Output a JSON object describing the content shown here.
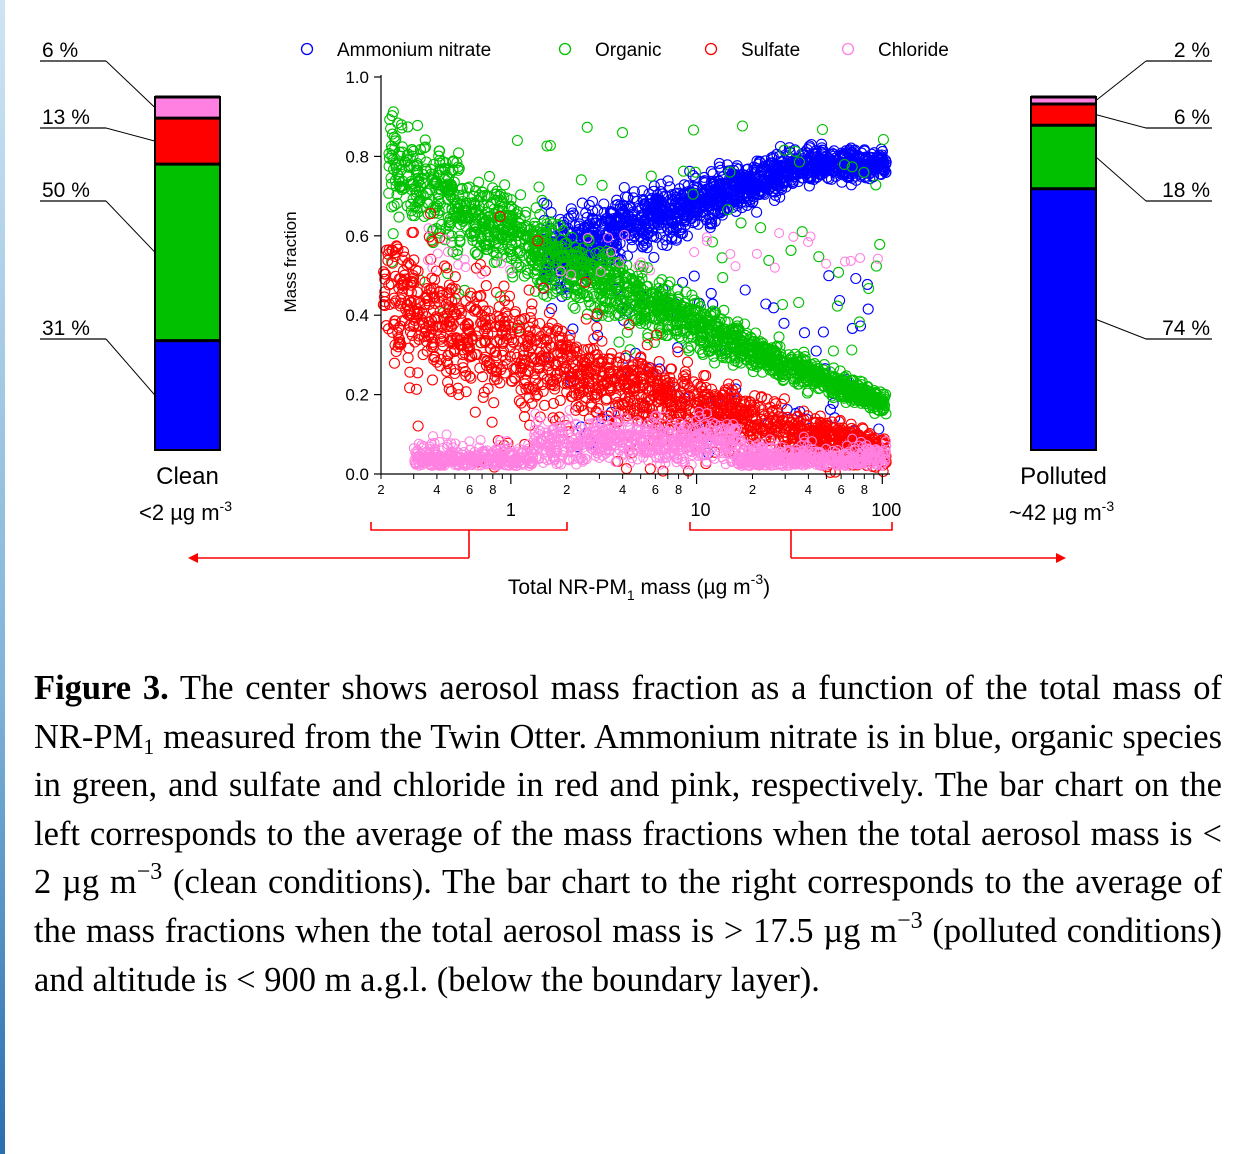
{
  "colors": {
    "ammonium_nitrate": "#0000ff",
    "organic": "#00c000",
    "sulfate": "#ff0000",
    "chloride": "#ff80e0",
    "arrow": "#ff0000"
  },
  "chart_data": [
    {
      "type": "scatter",
      "xlabel_main": "Total NR-PM",
      "xlabel_sub": "1",
      "xlabel_rest": " mass (µg m",
      "xlabel_sup": "-3",
      "xlabel_close": ")",
      "ylabel": "Mass fraction",
      "xscale": "log",
      "xlim": [
        0.2,
        110
      ],
      "ylim": [
        0,
        1
      ],
      "yticks": [
        "0.0",
        "0.2",
        "0.4",
        "0.6",
        "0.8",
        "1.0"
      ],
      "xtick_major": [
        "1",
        "10",
        "100"
      ],
      "xtick_minor": [
        "2",
        "4",
        "6",
        "8",
        "2",
        "4",
        "6",
        "8",
        "2",
        "4",
        "6",
        "8"
      ],
      "legend_position": "top",
      "series": [
        {
          "name": "Ammonium nitrate",
          "color_key": "ammonium_nitrate"
        },
        {
          "name": "Organic",
          "color_key": "organic"
        },
        {
          "name": "Sulfate",
          "color_key": "sulfate"
        },
        {
          "name": "Chloride",
          "color_key": "chloride"
        }
      ]
    },
    {
      "type": "bar",
      "stacked": true,
      "label": "Clean",
      "sublabel_pre": "<2 µg m",
      "sublabel_sup": "-3",
      "categories": [
        "Ammonium nitrate",
        "Organic",
        "Sulfate",
        "Chloride"
      ],
      "values": [
        31,
        50,
        13,
        6
      ],
      "value_labels": [
        "31 %",
        "50 %",
        "13 %",
        "6 %"
      ]
    },
    {
      "type": "bar",
      "stacked": true,
      "label": "Polluted",
      "sublabel_pre": "~42 µg m",
      "sublabel_sup": "-3",
      "categories": [
        "Ammonium nitrate",
        "Organic",
        "Sulfate",
        "Chloride"
      ],
      "values": [
        74,
        18,
        6,
        2
      ],
      "value_labels": [
        "74 %",
        "18 %",
        "6 %",
        "2 %"
      ]
    }
  ],
  "caption": {
    "label": "Figure 3.",
    "t1": " The center shows aerosol mass fraction as a function of the total mass of NR-PM",
    "t1_sub": "1",
    "t2": " measured from the Twin Otter. Ammonium nitrate is in blue, organic species in green, and sulfate and chloride in red and pink, respectively. The bar chart on the left corresponds to the average of the mass fractions when the total aerosol mass is < 2 µg m",
    "t2_sup": "−3",
    "t3": " (clean conditions). The bar chart to the right corresponds to the average of the mass fractions when the total aerosol mass is > 17.5 µg m",
    "t3_sup": "−3",
    "t4": " (polluted conditions) and altitude is < 900 m a.g.l. (below the boundary layer)."
  }
}
